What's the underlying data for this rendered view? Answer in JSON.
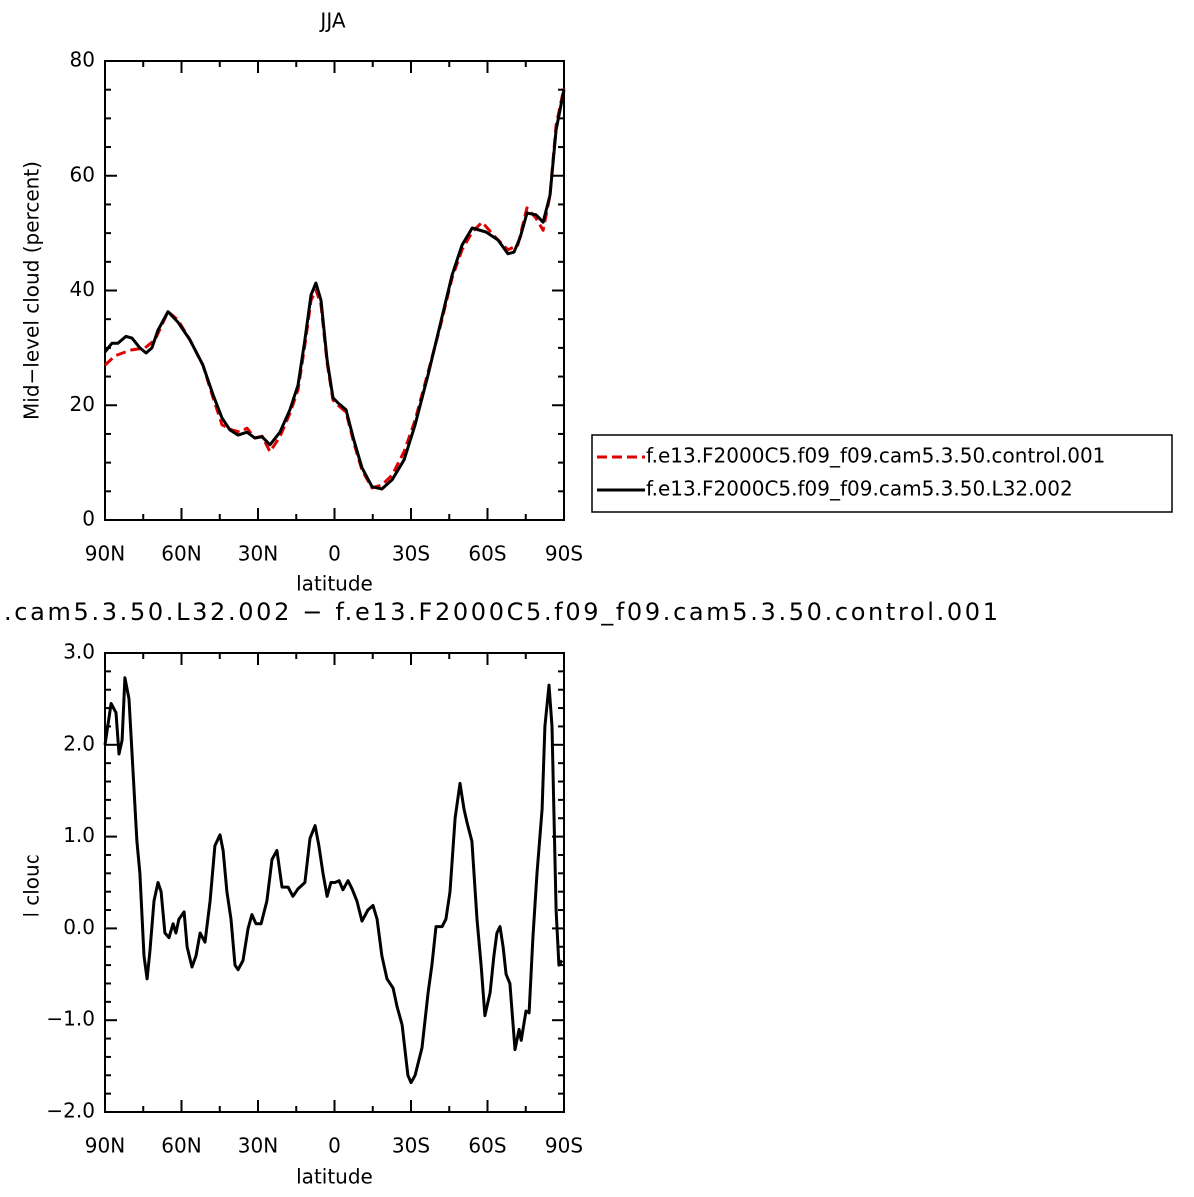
{
  "chart_data": [
    {
      "type": "line",
      "title": "JJA",
      "xlabel": "latitude",
      "ylabel": "Mid−level cloud (percent)",
      "xlim": [
        90,
        -90
      ],
      "xticks": [
        {
          "value": 90,
          "label": "90N"
        },
        {
          "value": 60,
          "label": "60N"
        },
        {
          "value": 30,
          "label": "30N"
        },
        0,
        {
          "value": -30,
          "label": "30S"
        },
        {
          "value": -60,
          "label": "60S"
        },
        {
          "value": -90,
          "label": "90S"
        }
      ],
      "minor_xticks": [
        75,
        45,
        15,
        -15,
        -45,
        -75
      ],
      "ylim": [
        0,
        80
      ],
      "yticks": [
        0,
        20,
        40,
        60,
        80
      ],
      "minor_yticks": [
        5,
        10,
        15,
        25,
        30,
        35,
        45,
        50,
        55,
        65,
        70,
        75
      ],
      "legend": "right",
      "series": [
        {
          "name": "f.e13.F2000C5.f09_f09.cam5.3.50.control.001",
          "color": "#e00000",
          "linestyle": "dashed",
          "x": [
            90,
            86.1,
            80.2,
            74.3,
            70.4,
            65.3,
            61.4,
            56.7,
            51.6,
            47.6,
            44.1,
            40.2,
            37.1,
            34.3,
            31.2,
            28.4,
            25.3,
            21.4,
            17.5,
            14.3,
            11.6,
            9.2,
            7.3,
            5.3,
            2.9,
            0.6,
            -1.4,
            -4.5,
            -7.6,
            -10.8,
            -14.7,
            -18.6,
            -22.6,
            -27.3,
            -31.6,
            -36.7,
            -41.4,
            -46.1,
            -50,
            -54,
            -57.9,
            -63.3,
            -68,
            -71.9,
            -75.5,
            -79,
            -81.8,
            -84.5,
            -86.9,
            -90
          ],
          "values": [
            27,
            28.6,
            29.6,
            30,
            31.4,
            36.3,
            34.9,
            31.4,
            27,
            21.3,
            16.6,
            15.7,
            15.3,
            16,
            14.3,
            14.6,
            11.9,
            14.5,
            18.6,
            22.7,
            30.5,
            38.3,
            40.1,
            37.5,
            27.4,
            20.9,
            20,
            18.8,
            13.4,
            8.7,
            5.6,
            6.1,
            7.8,
            11.9,
            17.4,
            25.8,
            33.6,
            42.2,
            47.1,
            50.2,
            51.9,
            49.2,
            47.1,
            47.9,
            54.4,
            52.6,
            50.5,
            56.6,
            68.8,
            75.3
          ]
        },
        {
          "name": "f.e13.F2000C5.f09_f09.cam5.3.50.L32.002",
          "color": "#000000",
          "linestyle": "solid",
          "x": [
            90,
            87.3,
            85,
            81.8,
            79.4,
            76.3,
            73.9,
            71.6,
            69.2,
            65.3,
            61.4,
            56.7,
            51.6,
            47.6,
            44.1,
            41,
            37.8,
            34.3,
            31.2,
            28.4,
            25.3,
            21.4,
            17.5,
            14.3,
            11.6,
            9.2,
            7.3,
            5.3,
            2.9,
            0.6,
            -1.4,
            -4.5,
            -7.6,
            -10.8,
            -14.7,
            -18.6,
            -22.6,
            -27.3,
            -31.6,
            -36.7,
            -41.4,
            -46.1,
            -50,
            -54,
            -59.4,
            -64.1,
            -68,
            -70.4,
            -72.8,
            -75.5,
            -79,
            -81.8,
            -84.5,
            -86.9,
            -90
          ],
          "values": [
            29.3,
            30.8,
            30.8,
            32,
            31.7,
            30,
            29.1,
            30,
            33.1,
            36.3,
            34.5,
            31.4,
            27,
            21.8,
            17.8,
            15.7,
            14.8,
            15.3,
            14.3,
            14.5,
            13.1,
            15.3,
            19.2,
            23.5,
            31.4,
            39.2,
            41.3,
            38.3,
            27.9,
            21.3,
            20.4,
            19.2,
            13.9,
            9.1,
            5.8,
            5.4,
            7,
            10.5,
            16.6,
            25.3,
            34,
            42.7,
            47.9,
            50.9,
            50.2,
            48.8,
            46.4,
            46.7,
            49.2,
            53.5,
            53.2,
            51.9,
            56.6,
            68,
            75
          ]
        }
      ]
    },
    {
      "type": "line",
      "title": ".cam5.3.50.L32.002 − f.e13.F2000C5.f09_f09.cam5.3.50.control.001",
      "xlabel": "latitude",
      "ylabel": "Mid−level cloud (percent)",
      "xlim": [
        90,
        -90
      ],
      "xticks": [
        {
          "value": 90,
          "label": "90N"
        },
        {
          "value": 60,
          "label": "60N"
        },
        {
          "value": 30,
          "label": "30N"
        },
        0,
        {
          "value": -30,
          "label": "30S"
        },
        {
          "value": -60,
          "label": "60S"
        },
        {
          "value": -90,
          "label": "90S"
        }
      ],
      "minor_xticks": [
        75,
        45,
        15,
        -15,
        -45,
        -75
      ],
      "ylim": [
        -2,
        3
      ],
      "yticks": [
        {
          "value": -2,
          "label": "−2.0"
        },
        {
          "value": -1,
          "label": "−1.0"
        },
        {
          "value": 0,
          "label": "0.0"
        },
        {
          "value": 1,
          "label": "1.0"
        },
        {
          "value": 2,
          "label": "2.0"
        },
        {
          "value": 3,
          "label": "3.0"
        }
      ],
      "minor_yticks": [
        -1.8,
        -1.6,
        -1.4,
        -1.2,
        -0.8,
        -0.6,
        -0.4,
        -0.2,
        0.2,
        0.4,
        0.6,
        0.8,
        1.2,
        1.4,
        1.6,
        1.8,
        2.2,
        2.4,
        2.6,
        2.8
      ],
      "series": [
        {
          "color": "#000000",
          "linestyle": "solid",
          "x": [
            90,
            87.6,
            85.7,
            84.5,
            83.3,
            82.2,
            80.6,
            77.5,
            76.3,
            74.7,
            73.5,
            72.4,
            70.8,
            69.2,
            68,
            66.5,
            64.9,
            63.3,
            62.2,
            61,
            59,
            57.8,
            55.9,
            54.3,
            52.7,
            50.8,
            48.8,
            46.9,
            44.9,
            43.7,
            42.2,
            40.6,
            39,
            37.8,
            35.9,
            33.9,
            32.4,
            30.8,
            28.8,
            26.5,
            24.5,
            22.6,
            20.6,
            18.2,
            16.3,
            14.3,
            11.6,
            9.6,
            7.6,
            6.1,
            4.5,
            2.9,
            1.4,
            -0.2,
            -1.8,
            -3.3,
            -5.3,
            -6.9,
            -8.8,
            -10.8,
            -13.1,
            -15.1,
            -16.7,
            -18.6,
            -20.6,
            -23,
            -24.5,
            -26.5,
            -28.8,
            -30,
            -31.6,
            -34.3,
            -36.7,
            -38.2,
            -39.8,
            -42.2,
            -43.7,
            -45.3,
            -47.3,
            -49.2,
            -50.8,
            -52,
            -53.9,
            -55.9,
            -57.5,
            -59,
            -61,
            -62.5,
            -63.7,
            -64.9,
            -66.1,
            -67.3,
            -68.8,
            -70.8,
            -72.4,
            -73.2,
            -75.1,
            -76.3,
            -77.8,
            -79.4,
            -81.4,
            -82.5,
            -84.1,
            -85.3,
            -86.9,
            -88,
            -89.2
          ],
          "values": [
            2.0,
            2.45,
            2.35,
            1.9,
            2.05,
            2.73,
            2.5,
            0.95,
            0.6,
            -0.3,
            -0.55,
            -0.25,
            0.3,
            0.5,
            0.4,
            -0.05,
            -0.1,
            0.05,
            -0.05,
            0.1,
            0.18,
            -0.2,
            -0.42,
            -0.3,
            -0.05,
            -0.15,
            0.3,
            0.9,
            1.02,
            0.85,
            0.4,
            0.1,
            -0.4,
            -0.45,
            -0.35,
            0.0,
            0.15,
            0.05,
            0.05,
            0.3,
            0.75,
            0.85,
            0.45,
            0.45,
            0.35,
            0.43,
            0.5,
            0.98,
            1.12,
            0.9,
            0.6,
            0.35,
            0.5,
            0.5,
            0.52,
            0.42,
            0.52,
            0.43,
            0.3,
            0.08,
            0.2,
            0.25,
            0.1,
            -0.3,
            -0.55,
            -0.65,
            -0.85,
            -1.05,
            -1.6,
            -1.68,
            -1.6,
            -1.3,
            -0.7,
            -0.4,
            0.02,
            0.02,
            0.1,
            0.4,
            1.2,
            1.58,
            1.3,
            1.15,
            0.95,
            0.1,
            -0.4,
            -0.95,
            -0.7,
            -0.3,
            -0.05,
            0.02,
            -0.2,
            -0.5,
            -0.6,
            -1.32,
            -1.1,
            -1.22,
            -0.9,
            -0.92,
            -0.1,
            0.6,
            1.3,
            2.2,
            2.65,
            2.2,
            0.2,
            -0.4,
            -0.35
          ]
        }
      ]
    }
  ]
}
